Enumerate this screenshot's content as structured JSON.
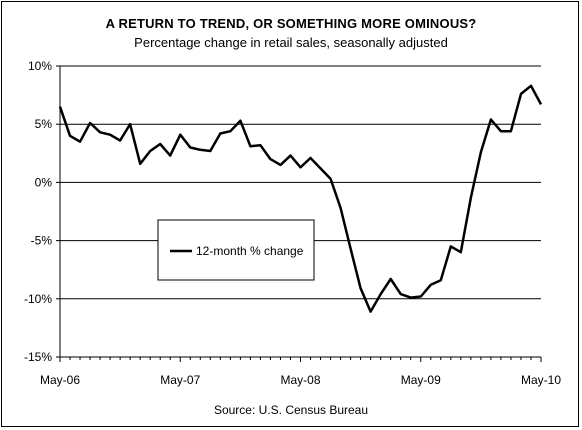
{
  "chart_data": {
    "type": "line",
    "title": "A RETURN TO TREND, OR SOMETHING MORE OMINOUS?",
    "subtitle": "Percentage change in retail sales, seasonally adjusted",
    "source": "Source: U.S. Census Bureau",
    "x_tick_labels": [
      "May-06",
      "May-07",
      "May-08",
      "May-09",
      "May-10"
    ],
    "y_tick_labels": [
      "10%",
      "5%",
      "0%",
      "-5%",
      "-10%",
      "-15%"
    ],
    "y_ticks": [
      10,
      5,
      0,
      -5,
      -10,
      -15
    ],
    "ylim": [
      -15,
      10
    ],
    "grid": "horizontal",
    "legend": {
      "position": "center-left",
      "entries": [
        "12-month % change"
      ]
    },
    "series": [
      {
        "name": "12-month % change",
        "color": "#000000",
        "values": [
          6.5,
          4.0,
          3.5,
          5.1,
          4.3,
          4.1,
          3.6,
          5.0,
          1.6,
          2.7,
          3.3,
          2.3,
          4.1,
          3.0,
          2.8,
          2.7,
          4.2,
          4.4,
          5.3,
          3.1,
          3.2,
          2.0,
          1.5,
          2.3,
          1.3,
          2.1,
          1.2,
          0.3,
          -2.2,
          -5.7,
          -9.1,
          -11.1,
          -9.6,
          -8.3,
          -9.6,
          -9.9,
          -9.8,
          -8.8,
          -8.4,
          -5.5,
          -6.0,
          -1.3,
          2.6,
          5.4,
          4.4,
          4.4,
          7.6,
          8.3,
          6.7
        ]
      }
    ]
  }
}
